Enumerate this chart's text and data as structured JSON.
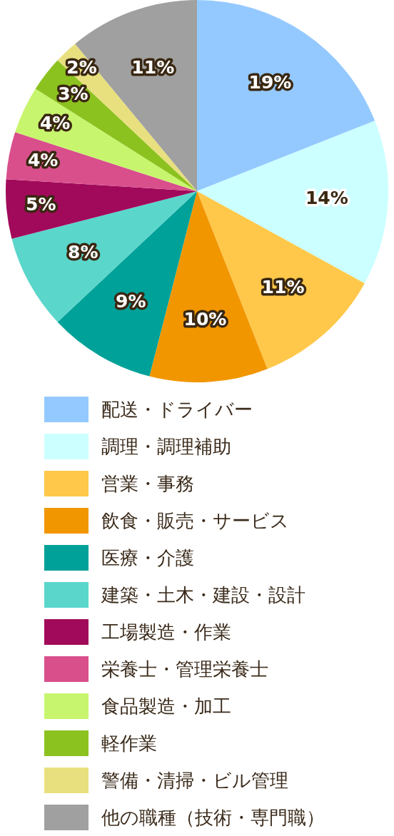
{
  "chart_data": {
    "type": "pie",
    "categories": [
      "配送・ドライバー",
      "調理・調理補助",
      "営業・事務",
      "飲食・販売・サービス",
      "医療・介護",
      "建築・土木・建設・設計",
      "工場製造・作業",
      "栄養士・管理栄養士",
      "食品製造・加工",
      "軽作業",
      "警備・清掃・ビル管理",
      "他の職種（技術・専門職）"
    ],
    "values": [
      19,
      14,
      11,
      10,
      9,
      8,
      5,
      4,
      4,
      3,
      2,
      11
    ],
    "colors": [
      "#94c9ff",
      "#ccffff",
      "#ffc84a",
      "#f29600",
      "#00a199",
      "#5ad6cb",
      "#a10a5a",
      "#d94f8c",
      "#c8f56e",
      "#8cc21f",
      "#e8e07f",
      "#a0a0a0"
    ],
    "value_labels": [
      "19%",
      "14%",
      "11%",
      "10%",
      "9%",
      "8%",
      "5%",
      "4%",
      "4%",
      "3%",
      "2%",
      "11%"
    ],
    "legend": "bottom"
  }
}
